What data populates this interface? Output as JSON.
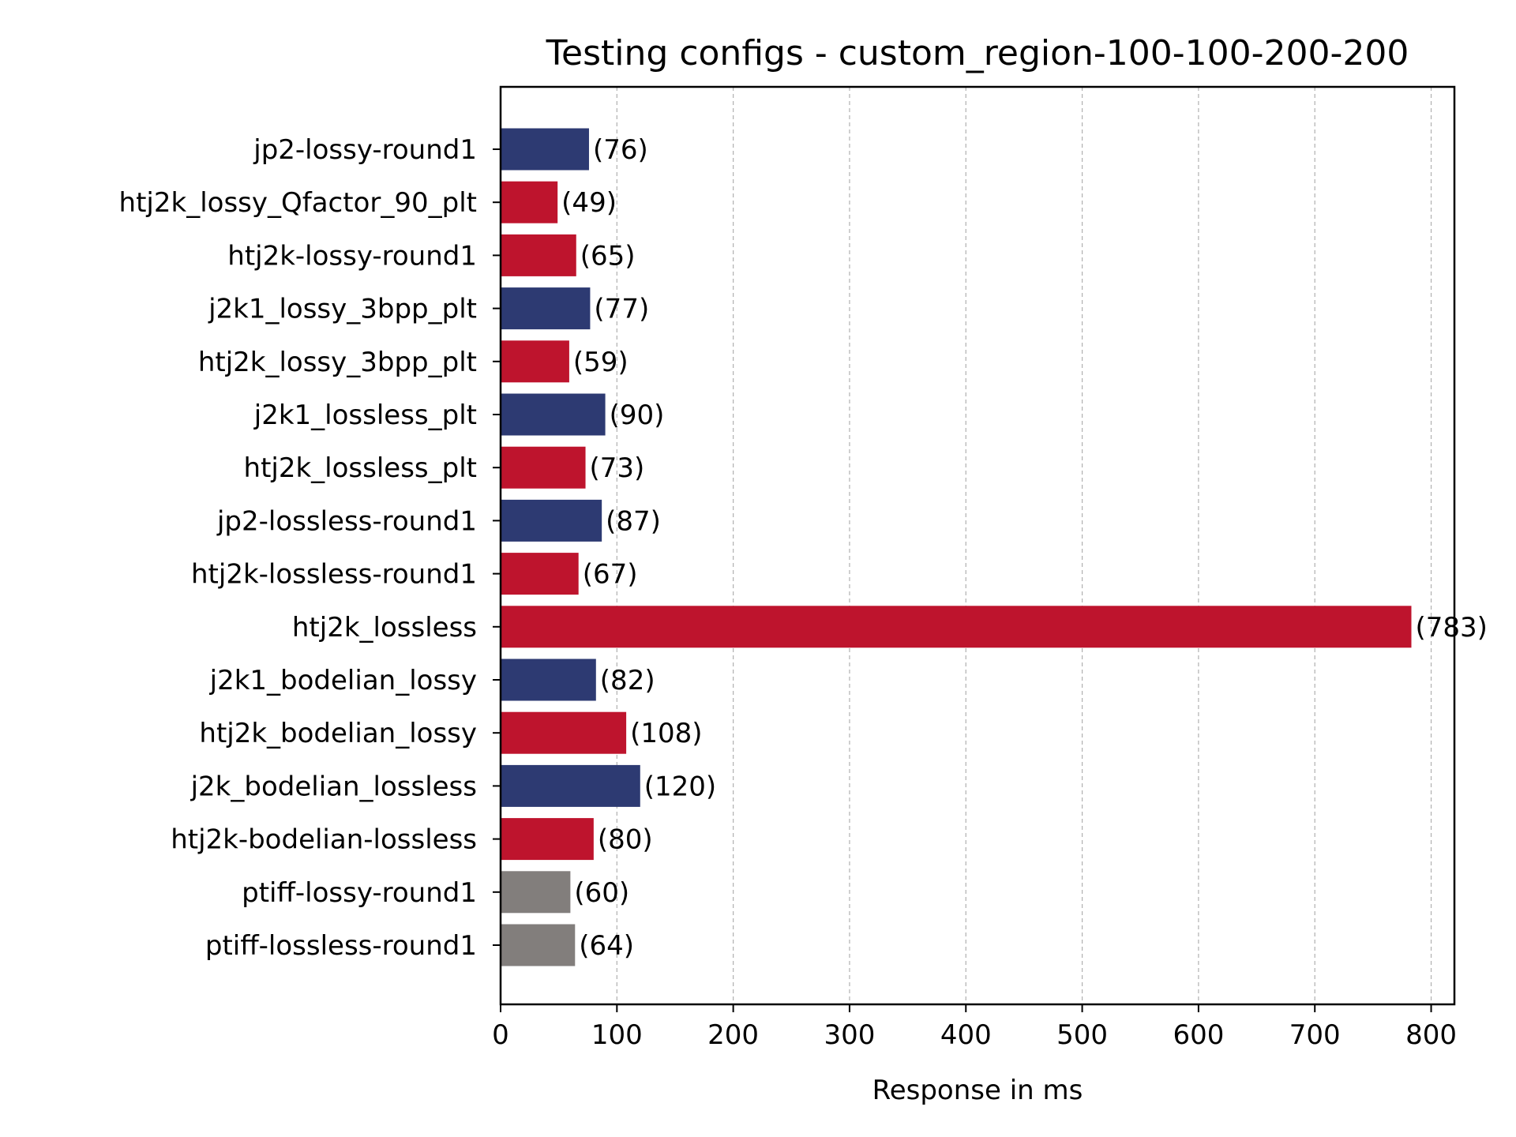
{
  "chart_data": {
    "type": "bar",
    "orientation": "horizontal",
    "title": "Testing configs - custom_region-100-100-200-200",
    "xlabel": "Response in ms",
    "ylabel": "",
    "xlim": [
      0,
      820
    ],
    "xticks": [
      0,
      100,
      200,
      300,
      400,
      500,
      600,
      700,
      800
    ],
    "grid": "vertical dashed",
    "colors": {
      "blue": "#2d3a72",
      "red": "#be142d",
      "gray": "#827e7c"
    },
    "categories": [
      "jp2-lossy-round1",
      "htj2k_lossy_Qfactor_90_plt",
      "htj2k-lossy-round1",
      "j2k1_lossy_3bpp_plt",
      "htj2k_lossy_3bpp_plt",
      "j2k1_lossless_plt",
      "htj2k_lossless_plt",
      "jp2-lossless-round1",
      "htj2k-lossless-round1",
      "htj2k_lossless",
      "j2k1_bodelian_lossy",
      "htj2k_bodelian_lossy",
      "j2k_bodelian_lossless",
      "htj2k-bodelian-lossless",
      "ptiff-lossy-round1",
      "ptiff-lossless-round1"
    ],
    "values": [
      76,
      49,
      65,
      77,
      59,
      90,
      73,
      87,
      67,
      783,
      82,
      108,
      120,
      80,
      60,
      64
    ],
    "value_labels": [
      "(76)",
      "(49)",
      "(65)",
      "(77)",
      "(59)",
      "(90)",
      "(73)",
      "(87)",
      "(67)",
      "(783)",
      "(82)",
      "(108)",
      "(120)",
      "(80)",
      "(60)",
      "(64)"
    ],
    "bar_colors": [
      "blue",
      "red",
      "red",
      "blue",
      "red",
      "blue",
      "red",
      "blue",
      "red",
      "red",
      "blue",
      "red",
      "blue",
      "red",
      "gray",
      "gray"
    ]
  }
}
